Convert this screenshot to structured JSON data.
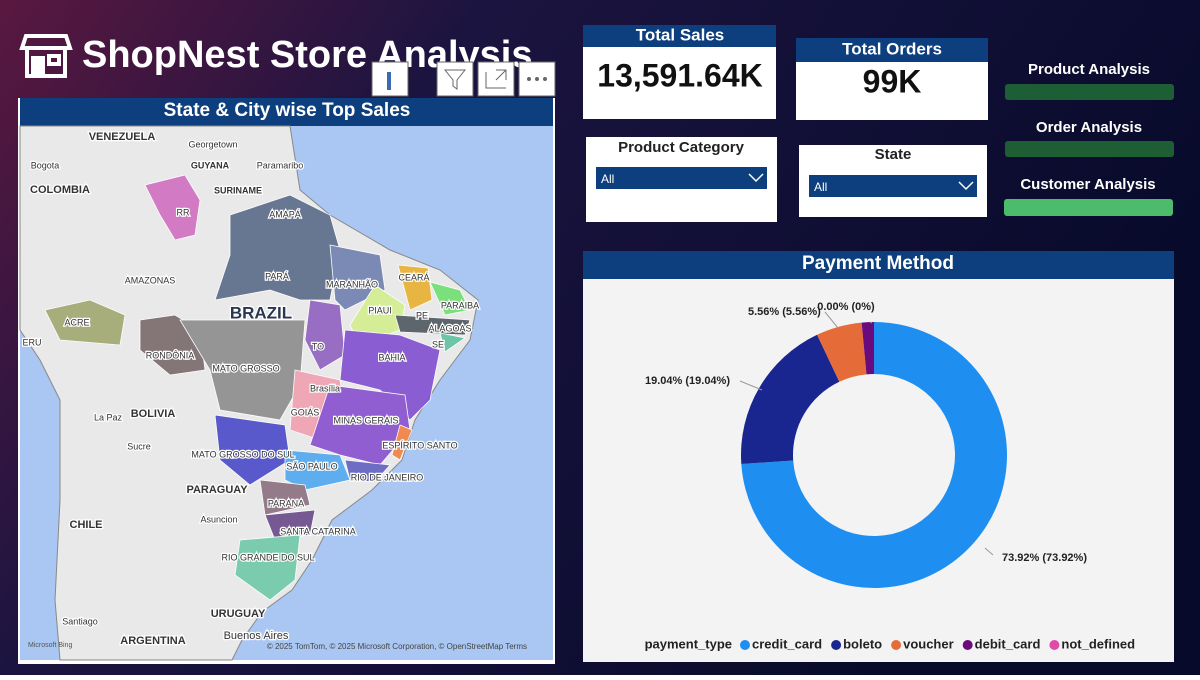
{
  "header": {
    "title": "ShopNest Store Analysis"
  },
  "cards": [
    {
      "title": "Total Sales",
      "value": "13,591.64K"
    },
    {
      "title": "Total Orders",
      "value": "99K"
    }
  ],
  "slicers": [
    {
      "label": "Product Category",
      "selected": "All"
    },
    {
      "label": "State",
      "selected": "All"
    }
  ],
  "nav": [
    "Product Analysis",
    "Order Analysis",
    "Customer Analysis"
  ],
  "map": {
    "title": "State & City wise Top Sales",
    "labels": [
      "VENEZUELA",
      "Bogota",
      "Georgetown",
      "GUYANA",
      "Paramaribo",
      "COLOMBIA",
      "SURINAME",
      "RR",
      "AMAPÁ",
      "PARÁ",
      "AMAZONAS",
      "MARANHÃO",
      "CEARÁ",
      "PARAIBA",
      "PIAUI",
      "BRAZIL",
      "PE",
      "ALAGOAS",
      "SE",
      "ACRE",
      "ERU",
      "RONDÔNIA",
      "TO",
      "BAHIA",
      "MATO GROSSO",
      "Brasília",
      "GOIÁS",
      "MINAS GERAIS",
      "La Paz",
      "BOLIVIA",
      "ESPÍRITO SANTO",
      "Sucre",
      "MATO GROSSO DO SUL",
      "SÃO PAULO",
      "RIO DE JANEIRO",
      "PARAGUAY",
      "PARANA",
      "Asuncion",
      "CHILE",
      "SANTA CATARINA",
      "RIO GRANDE DO SUL",
      "URUGUAY",
      "Santiago",
      "ARGENTINA",
      "Buenos Aires"
    ],
    "logo": "Microsoft Bing",
    "attribution": "© 2025 TomTom, © 2025 Microsoft Corporation, © OpenStreetMap  Terms"
  },
  "chart_data": {
    "type": "donut",
    "title": "Payment Method",
    "legend_title": "payment_type",
    "categories": [
      "credit_card",
      "boleto",
      "voucher",
      "debit_card",
      "not_defined"
    ],
    "values": [
      73.92,
      19.04,
      5.56,
      1.48,
      0.0
    ],
    "value_labels": [
      "73.92% (73.92%)",
      "19.04% (19.04%)",
      "5.56% (5.56%)",
      null,
      "0.00% (0%)"
    ],
    "colors": [
      "#1e8ff0",
      "#1a2690",
      "#e56c38",
      "#6a0a7c",
      "#e04aa8"
    ]
  }
}
